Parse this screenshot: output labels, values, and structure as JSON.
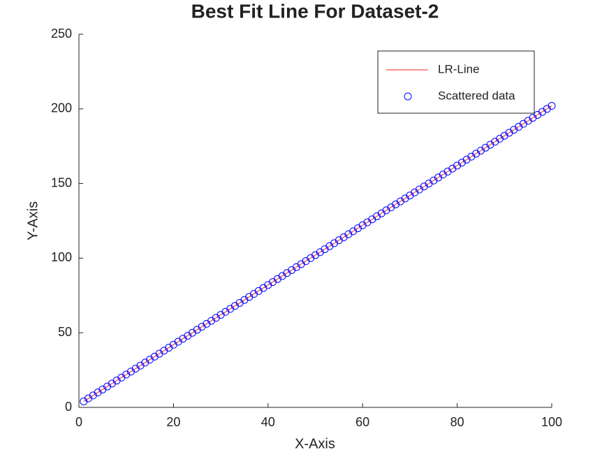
{
  "chart_data": {
    "type": "scatter",
    "title": "Best Fit Line For Dataset-2",
    "x_label": "X-Axis",
    "y_label": "Y-Axis",
    "xlim": [
      0,
      100
    ],
    "ylim": [
      0,
      250
    ],
    "xticks": [
      0,
      20,
      40,
      60,
      80,
      100
    ],
    "yticks": [
      0,
      50,
      100,
      150,
      200,
      250
    ],
    "grid": false,
    "legend_position": "upper-right",
    "series": [
      {
        "name": "LR-Line",
        "color": "#ff5050",
        "style": "line",
        "x": [
          1,
          100
        ],
        "values": [
          4,
          202
        ]
      },
      {
        "name": "Scattered data",
        "color": "#0000ff",
        "style": "marker",
        "x": [
          1,
          2,
          3,
          4,
          5,
          6,
          7,
          8,
          9,
          10,
          11,
          12,
          13,
          14,
          15,
          16,
          17,
          18,
          19,
          20,
          21,
          22,
          23,
          24,
          25,
          26,
          27,
          28,
          29,
          30,
          31,
          32,
          33,
          34,
          35,
          36,
          37,
          38,
          39,
          40,
          41,
          42,
          43,
          44,
          45,
          46,
          47,
          48,
          49,
          50,
          51,
          52,
          53,
          54,
          55,
          56,
          57,
          58,
          59,
          60,
          61,
          62,
          63,
          64,
          65,
          66,
          67,
          68,
          69,
          70,
          71,
          72,
          73,
          74,
          75,
          76,
          77,
          78,
          79,
          80,
          81,
          82,
          83,
          84,
          85,
          86,
          87,
          88,
          89,
          90,
          91,
          92,
          93,
          94,
          95,
          96,
          97,
          98,
          99,
          100
        ],
        "values": [
          4,
          6,
          8,
          10,
          12,
          14,
          16,
          18,
          20,
          22,
          24,
          26,
          28,
          30,
          32,
          34,
          36,
          38,
          40,
          42,
          44,
          46,
          48,
          50,
          52,
          54,
          56,
          58,
          60,
          62,
          64,
          66,
          68,
          70,
          72,
          74,
          76,
          78,
          80,
          82,
          84,
          86,
          88,
          90,
          92,
          94,
          96,
          98,
          100,
          102,
          104,
          106,
          108,
          110,
          112,
          114,
          116,
          118,
          120,
          122,
          124,
          126,
          128,
          130,
          132,
          134,
          136,
          138,
          140,
          142,
          144,
          146,
          148,
          150,
          152,
          154,
          156,
          158,
          160,
          162,
          164,
          166,
          168,
          170,
          172,
          174,
          176,
          178,
          180,
          182,
          184,
          186,
          188,
          190,
          192,
          194,
          196,
          198,
          200,
          202
        ]
      }
    ]
  }
}
